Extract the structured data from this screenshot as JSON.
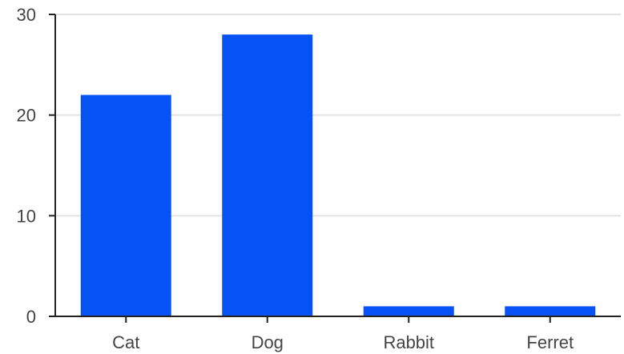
{
  "chart_data": {
    "type": "bar",
    "categories": [
      "Cat",
      "Dog",
      "Rabbit",
      "Ferret"
    ],
    "values": [
      22,
      28,
      1,
      1
    ],
    "yticks": [
      0,
      10,
      20,
      30
    ],
    "ylim": [
      0,
      30
    ],
    "grid": true,
    "title": "",
    "xlabel": "",
    "ylabel": "",
    "colors": {
      "bar": "#0652f5",
      "grid": "#e3e3e3",
      "axis": "#222222",
      "text": "#444444"
    }
  }
}
